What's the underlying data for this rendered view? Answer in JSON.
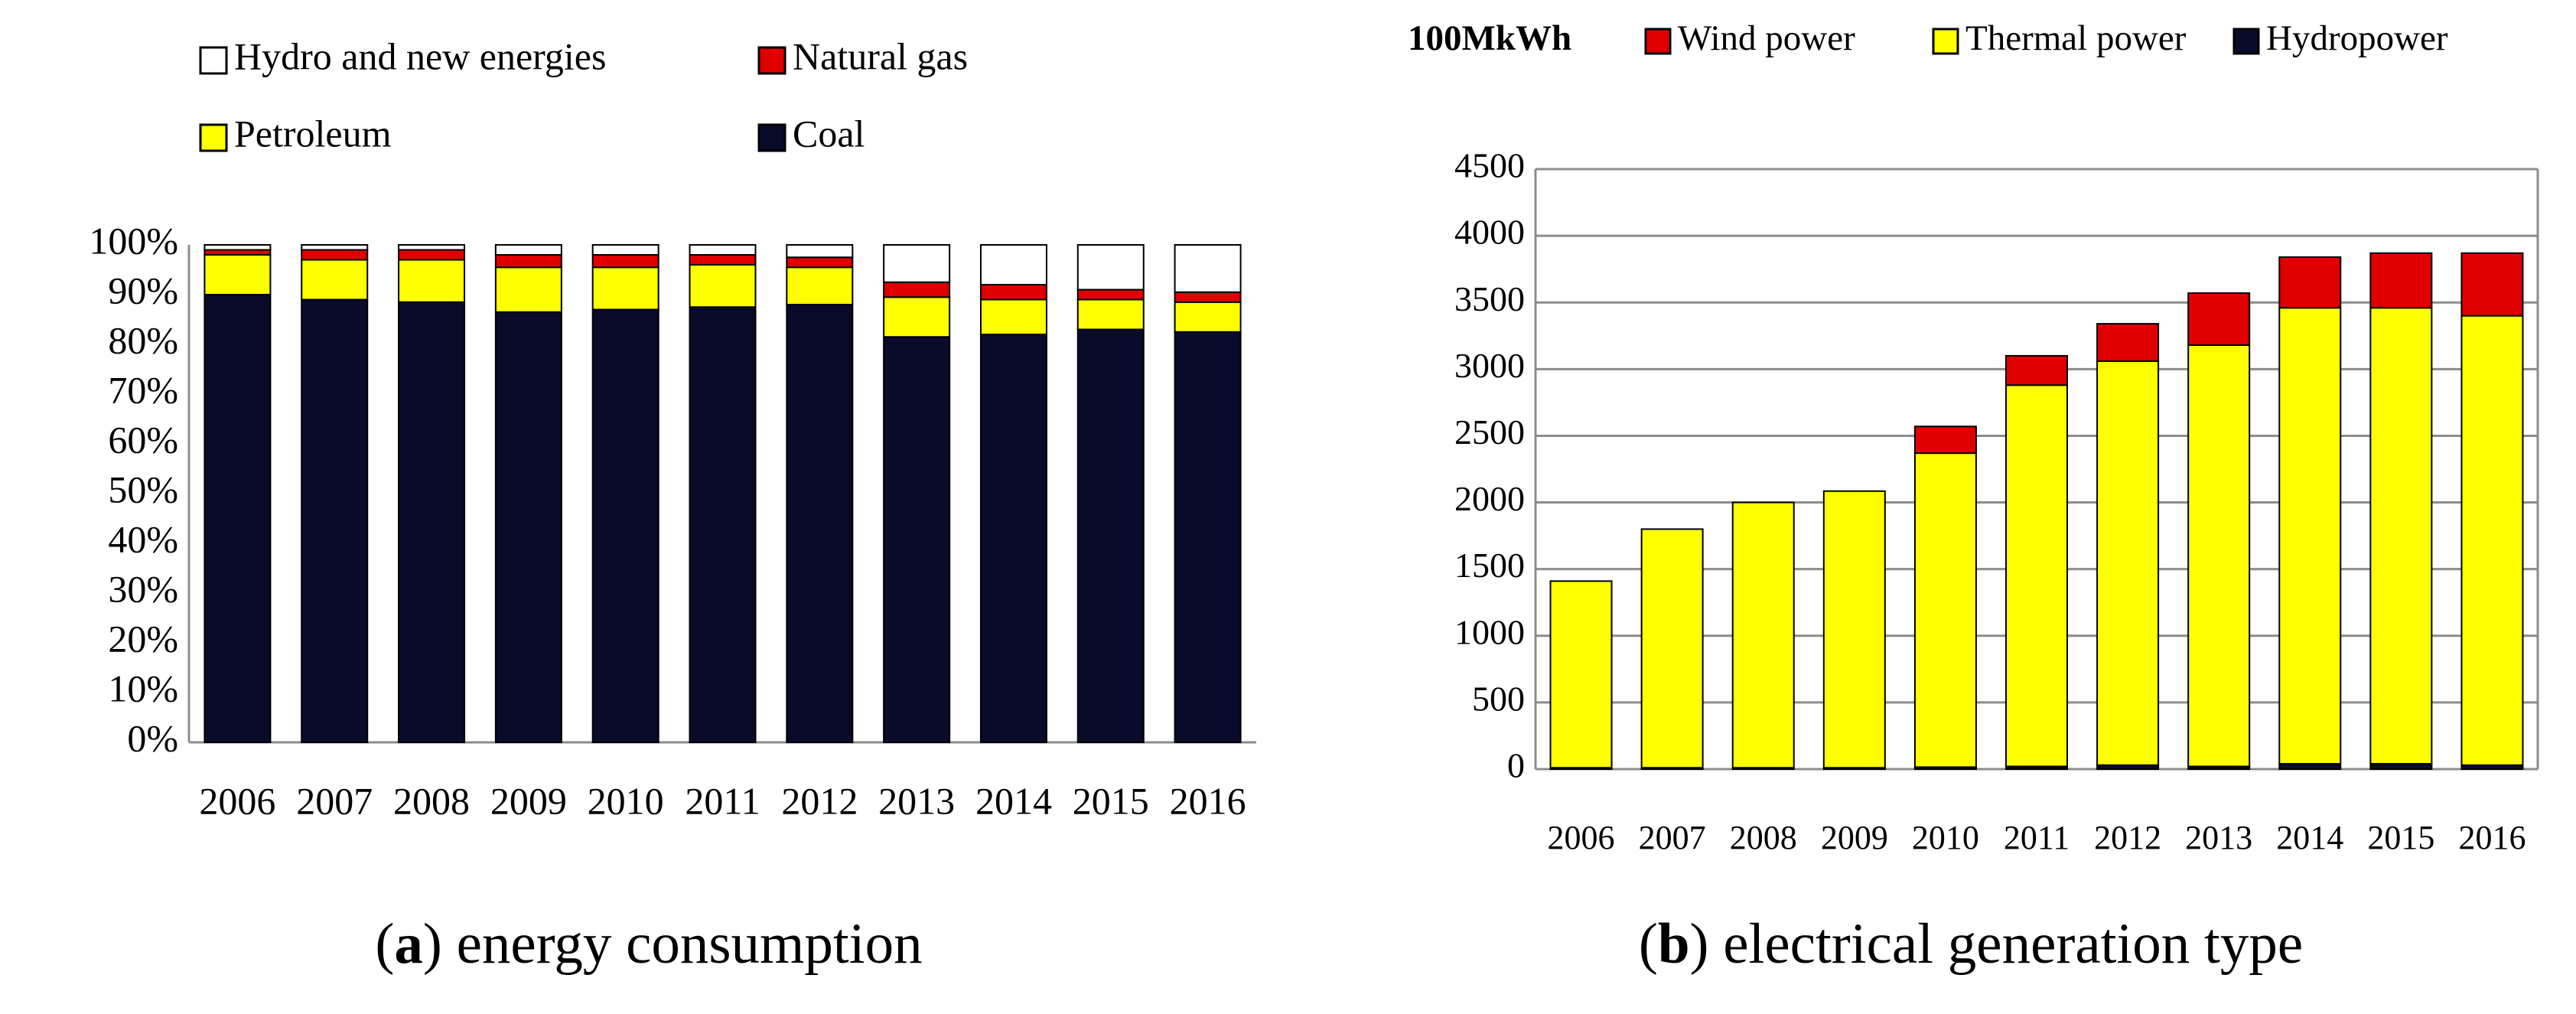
{
  "chart_data": [
    {
      "type": "bar",
      "stacked": true,
      "caption": [
        "(",
        "a",
        ") energy consumption"
      ],
      "categories": [
        "2006",
        "2007",
        "2008",
        "2009",
        "2010",
        "2011",
        "2012",
        "2013",
        "2014",
        "2015",
        "2016"
      ],
      "series": [
        {
          "name": "Coal",
          "color": "#0a0a2a",
          "values": [
            90,
            89,
            88.5,
            86.5,
            87,
            87.5,
            88,
            81.5,
            82,
            83,
            82.5
          ]
        },
        {
          "name": "Petroleum",
          "color": "#ffff00",
          "values": [
            8,
            8,
            8.5,
            9,
            8.5,
            8.5,
            7.5,
            8,
            7,
            6,
            6
          ]
        },
        {
          "name": "Natural gas",
          "color": "#e00000",
          "values": [
            1,
            2,
            2,
            2.5,
            2.5,
            2,
            2,
            3,
            3,
            2,
            2
          ]
        },
        {
          "name": "Hydro and new energies",
          "color": "#ffffff",
          "values": [
            1,
            1,
            1,
            2,
            2,
            2,
            2.5,
            7.5,
            8,
            9,
            9.5
          ]
        }
      ],
      "ylim": [
        0,
        100
      ],
      "yticks": [
        {
          "value": 0,
          "label": "0%"
        },
        {
          "value": 10,
          "label": "10%"
        },
        {
          "value": 20,
          "label": "20%"
        },
        {
          "value": 30,
          "label": "30%"
        },
        {
          "value": 40,
          "label": "40%"
        },
        {
          "value": 50,
          "label": "50%"
        },
        {
          "value": 60,
          "label": "60%"
        },
        {
          "value": 70,
          "label": "70%"
        },
        {
          "value": 80,
          "label": "80%"
        },
        {
          "value": 90,
          "label": "90%"
        },
        {
          "value": 100,
          "label": "100%"
        }
      ],
      "grid": false
    },
    {
      "type": "bar",
      "stacked": true,
      "caption": [
        "(",
        "b",
        ") electrical generation type"
      ],
      "y_label": "100MkWh",
      "categories": [
        "2006",
        "2007",
        "2008",
        "2009",
        "2010",
        "2011",
        "2012",
        "2013",
        "2014",
        "2015",
        "2016"
      ],
      "series": [
        {
          "name": "Hydropower",
          "color": "#0a0a2a",
          "values": [
            10,
            10,
            10,
            10,
            15,
            20,
            30,
            20,
            40,
            40,
            30
          ]
        },
        {
          "name": "Thermal power",
          "color": "#ffff00",
          "values": [
            1400,
            1790,
            1990,
            2075,
            2355,
            2860,
            3030,
            3160,
            3420,
            3420,
            3370
          ]
        },
        {
          "name": "Wind power",
          "color": "#e00000",
          "values": [
            0,
            0,
            0,
            0,
            200,
            220,
            280,
            390,
            380,
            410,
            470
          ]
        }
      ],
      "ylim": [
        0,
        4500
      ],
      "yticks": [
        0,
        500,
        1000,
        1500,
        2000,
        2500,
        3000,
        3500,
        4000,
        4500
      ],
      "grid": true
    }
  ]
}
